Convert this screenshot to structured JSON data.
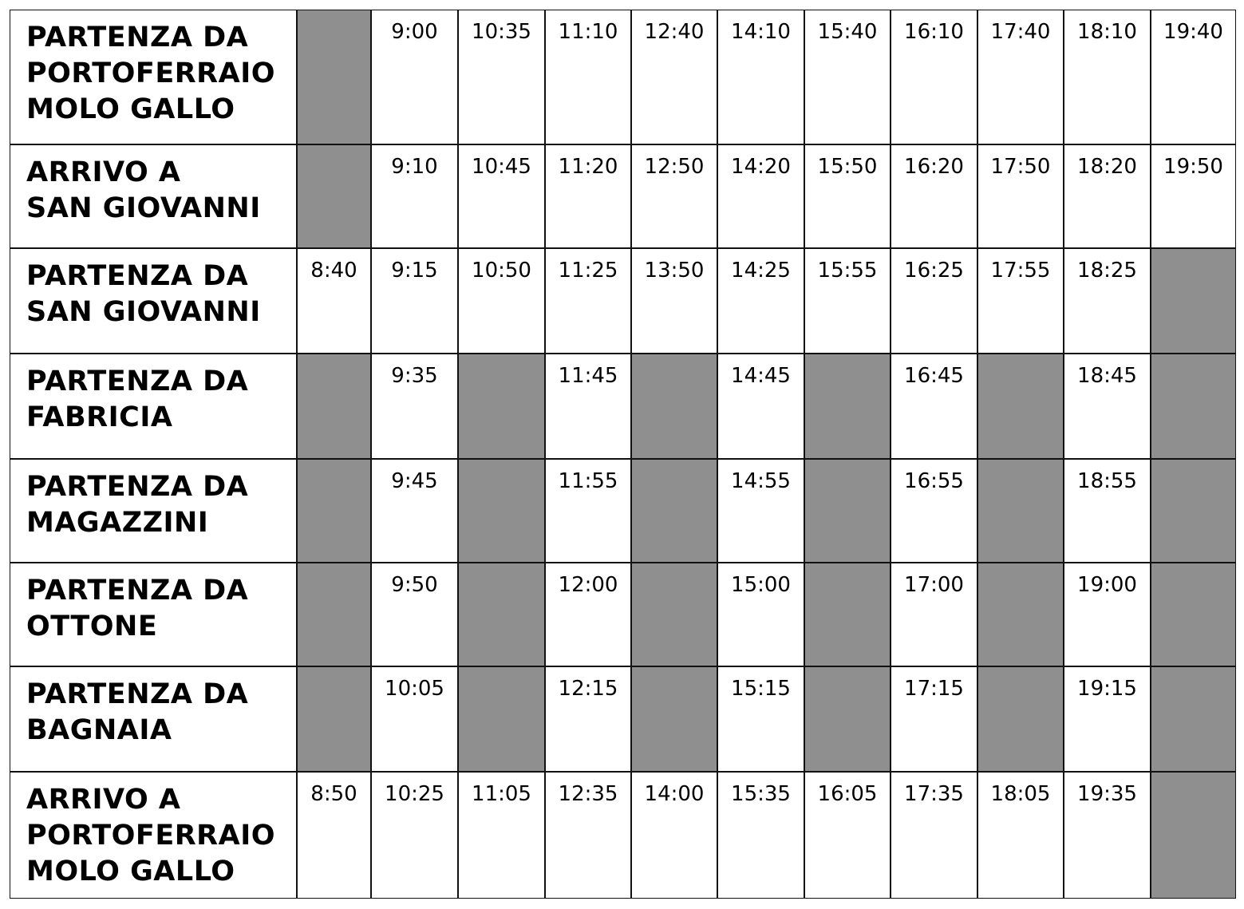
{
  "table": {
    "rows": [
      {
        "label": [
          "PARTENZA DA",
          "PORTOFERRAIO",
          "MOLO GALLO"
        ],
        "times": [
          null,
          "9:00",
          "10:35",
          "11:10",
          "12:40",
          "14:10",
          "15:40",
          "16:10",
          "17:40",
          "18:10",
          "19:40"
        ]
      },
      {
        "label": [
          "ARRIVO A",
          "SAN GIOVANNI"
        ],
        "times": [
          null,
          "9:10",
          "10:45",
          "11:20",
          "12:50",
          "14:20",
          "15:50",
          "16:20",
          "17:50",
          "18:20",
          "19:50"
        ]
      },
      {
        "label": [
          "PARTENZA DA",
          "SAN GIOVANNI"
        ],
        "times": [
          "8:40",
          "9:15",
          "10:50",
          "11:25",
          "13:50",
          "14:25",
          "15:55",
          "16:25",
          "17:55",
          "18:25",
          null
        ]
      },
      {
        "label": [
          "PARTENZA DA",
          "FABRICIA"
        ],
        "times": [
          null,
          "9:35",
          null,
          "11:45",
          null,
          "14:45",
          null,
          "16:45",
          null,
          "18:45",
          null
        ]
      },
      {
        "label": [
          "PARTENZA DA",
          "MAGAZZINI"
        ],
        "times": [
          null,
          "9:45",
          null,
          "11:55",
          null,
          "14:55",
          null,
          "16:55",
          null,
          "18:55",
          null
        ]
      },
      {
        "label": [
          "PARTENZA DA",
          "OTTONE"
        ],
        "times": [
          null,
          "9:50",
          null,
          "12:00",
          null,
          "15:00",
          null,
          "17:00",
          null,
          "19:00",
          null
        ]
      },
      {
        "label": [
          "PARTENZA DA",
          "BAGNAIA"
        ],
        "times": [
          null,
          "10:05",
          null,
          "12:15",
          null,
          "15:15",
          null,
          "17:15",
          null,
          "19:15",
          null
        ]
      },
      {
        "label": [
          "ARRIVO A",
          "PORTOFERRAIO",
          "MOLO GALLO"
        ],
        "times": [
          "8:50",
          "10:25",
          "11:05",
          "12:35",
          "14:00",
          "15:35",
          "16:05",
          "17:35",
          "18:05",
          "19:35",
          null
        ]
      }
    ]
  }
}
